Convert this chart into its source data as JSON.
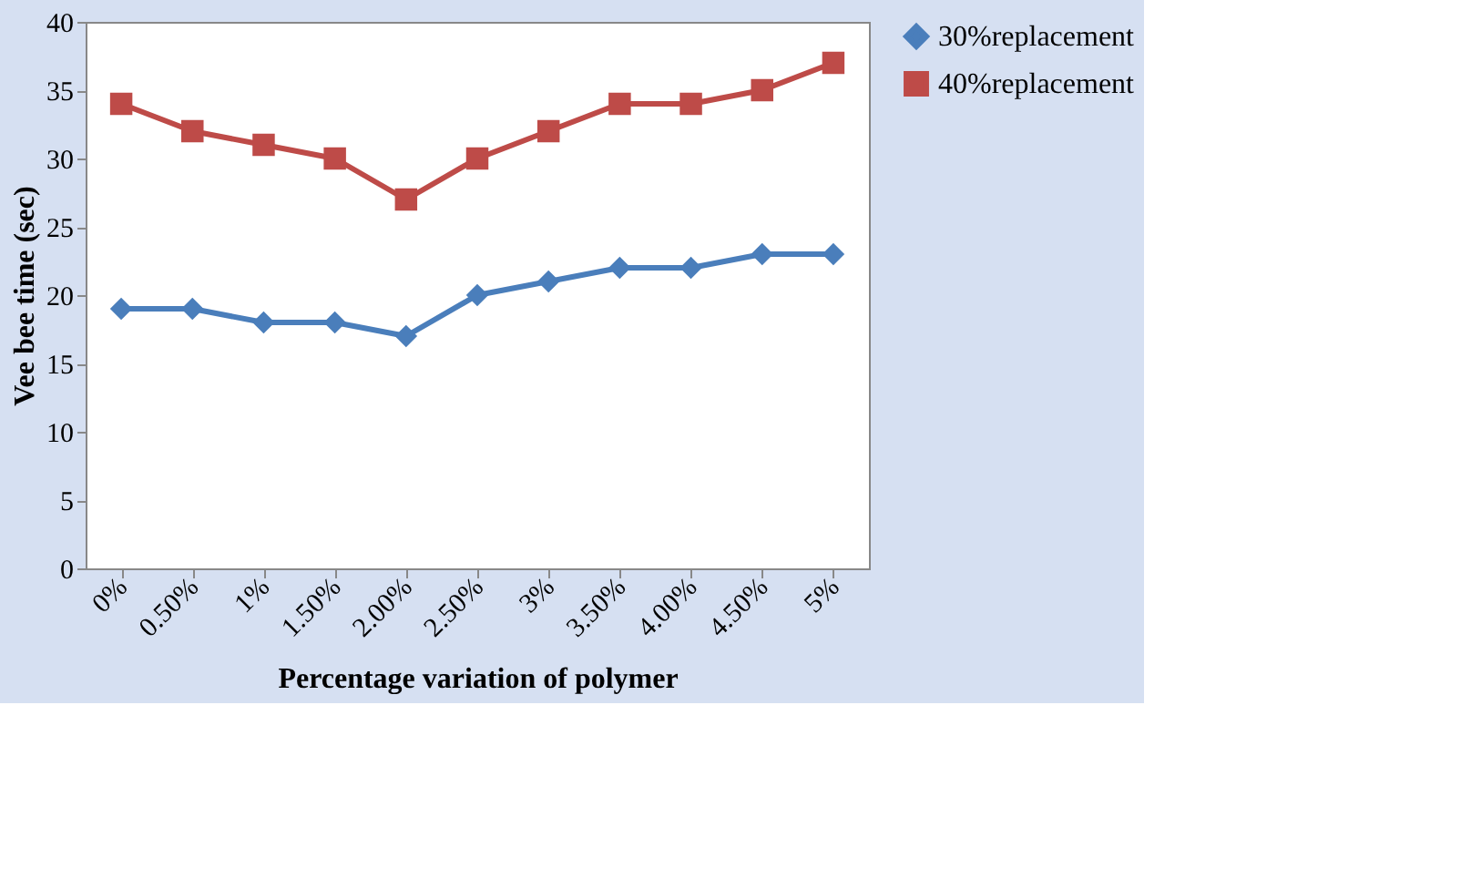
{
  "chart_data": {
    "type": "line",
    "xlabel": "Percentage variation of polymer",
    "ylabel": "Vee bee time (sec)",
    "categories": [
      "0%",
      "0.50%",
      "1%",
      "1.50%",
      "2.00%",
      "2.50%",
      "3%",
      "3.50%",
      "4.00%",
      "4.50%",
      "5%"
    ],
    "series": [
      {
        "name": "30%replacement",
        "color": "#4a7ebb",
        "marker": "diamond",
        "values": [
          19,
          19,
          18,
          18,
          17,
          20,
          21,
          22,
          22,
          23,
          23
        ]
      },
      {
        "name": "40%replacement",
        "color": "#be4b48",
        "marker": "square",
        "values": [
          34,
          32,
          31,
          30,
          27,
          30,
          32,
          34,
          34,
          35,
          37
        ]
      }
    ],
    "ylim": [
      0,
      40
    ],
    "yticks": [
      0,
      5,
      10,
      15,
      20,
      25,
      30,
      35,
      40
    ],
    "grid": false,
    "legend": "right",
    "line_style": "solid"
  }
}
